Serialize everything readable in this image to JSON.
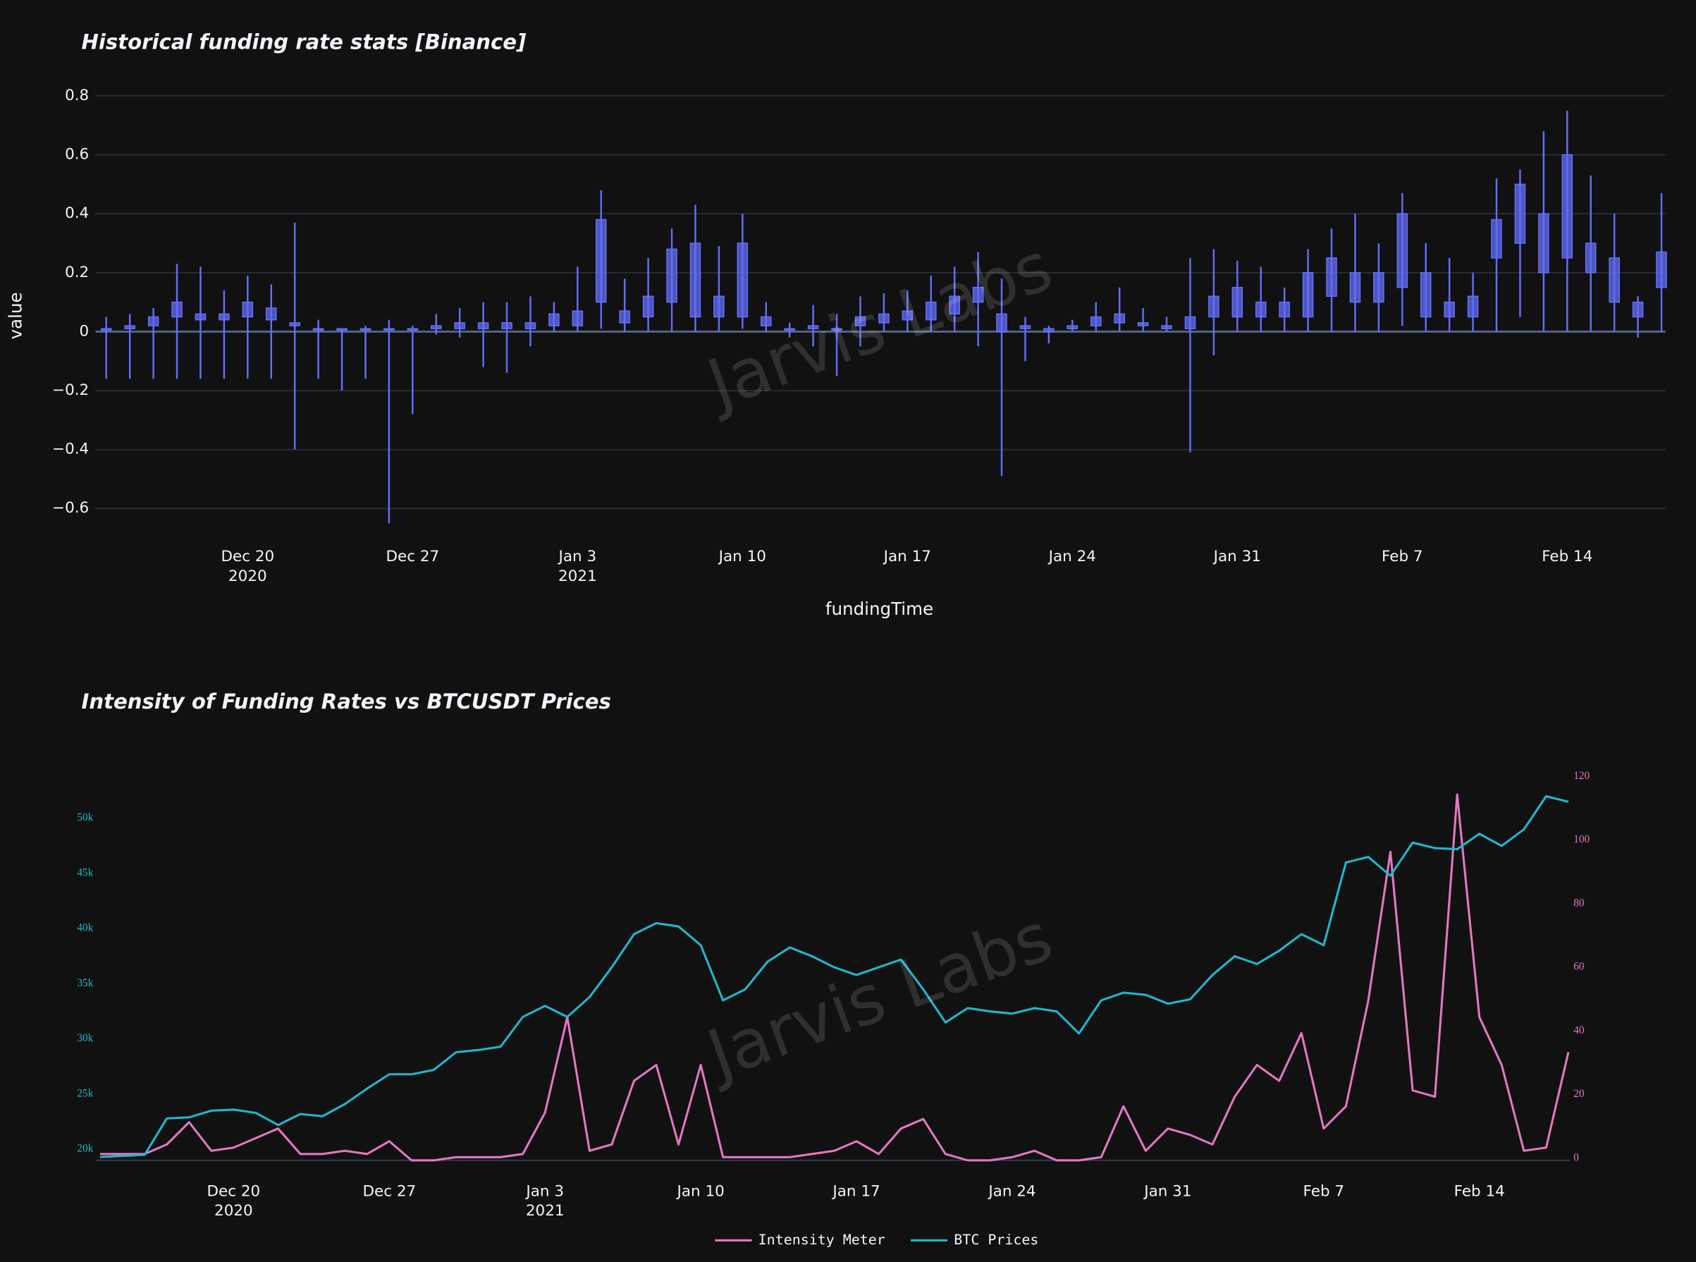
{
  "chart_data": [
    {
      "type": "candlestick",
      "title": "Historical funding rate stats [Binance]",
      "ylabel": "value",
      "xlabel": "fundingTime",
      "watermark": "Jarvis Labs",
      "color": "#636efa",
      "x": [
        "2020-12-14",
        "2020-12-15",
        "2020-12-16",
        "2020-12-17",
        "2020-12-18",
        "2020-12-19",
        "2020-12-20",
        "2020-12-21",
        "2020-12-22",
        "2020-12-23",
        "2020-12-24",
        "2020-12-25",
        "2020-12-26",
        "2020-12-27",
        "2020-12-28",
        "2020-12-29",
        "2020-12-30",
        "2020-12-31",
        "2021-01-01",
        "2021-01-02",
        "2021-01-03",
        "2021-01-04",
        "2021-01-05",
        "2021-01-06",
        "2021-01-07",
        "2021-01-08",
        "2021-01-09",
        "2021-01-10",
        "2021-01-11",
        "2021-01-12",
        "2021-01-13",
        "2021-01-14",
        "2021-01-15",
        "2021-01-16",
        "2021-01-17",
        "2021-01-18",
        "2021-01-19",
        "2021-01-20",
        "2021-01-21",
        "2021-01-22",
        "2021-01-23",
        "2021-01-24",
        "2021-01-25",
        "2021-01-26",
        "2021-01-27",
        "2021-01-28",
        "2021-01-29",
        "2021-01-30",
        "2021-01-31",
        "2021-02-01",
        "2021-02-02",
        "2021-02-03",
        "2021-02-04",
        "2021-02-05",
        "2021-02-06",
        "2021-02-07",
        "2021-02-08",
        "2021-02-09",
        "2021-02-10",
        "2021-02-11",
        "2021-02-12",
        "2021-02-13",
        "2021-02-14",
        "2021-02-15",
        "2021-02-16",
        "2021-02-17",
        "2021-02-18"
      ],
      "open": [
        0.01,
        0.01,
        0.02,
        0.05,
        0.06,
        0.04,
        0.05,
        0.08,
        0.03,
        0.01,
        0.01,
        0.01,
        0.01,
        0.01,
        0.01,
        0.01,
        0.03,
        0.01,
        0.01,
        0.02,
        0.02,
        0.1,
        0.07,
        0.05,
        0.1,
        0.05,
        0.05,
        0.05,
        0.05,
        0.01,
        0.01,
        0.01,
        0.02,
        0.03,
        0.04,
        0.04,
        0.06,
        0.1,
        0.06,
        0.01,
        0.0,
        0.01,
        0.02,
        0.03,
        0.02,
        0.02,
        0.01,
        0.05,
        0.05,
        0.05,
        0.05,
        0.05,
        0.12,
        0.1,
        0.1,
        0.15,
        0.05,
        0.05,
        0.05,
        0.25,
        0.3,
        0.2,
        0.25,
        0.2,
        0.1,
        0.05,
        0.15
      ],
      "high": [
        0.05,
        0.06,
        0.08,
        0.23,
        0.22,
        0.14,
        0.19,
        0.16,
        0.37,
        0.04,
        0.01,
        0.02,
        0.04,
        0.02,
        0.06,
        0.08,
        0.1,
        0.1,
        0.12,
        0.1,
        0.22,
        0.48,
        0.18,
        0.25,
        0.35,
        0.43,
        0.29,
        0.4,
        0.1,
        0.03,
        0.09,
        0.06,
        0.12,
        0.13,
        0.14,
        0.19,
        0.22,
        0.27,
        0.18,
        0.05,
        0.02,
        0.04,
        0.1,
        0.15,
        0.08,
        0.05,
        0.25,
        0.28,
        0.24,
        0.22,
        0.15,
        0.28,
        0.35,
        0.4,
        0.3,
        0.47,
        0.3,
        0.25,
        0.2,
        0.52,
        0.55,
        0.68,
        0.75,
        0.53,
        0.4,
        0.12,
        0.47
      ],
      "low": [
        -0.16,
        -0.16,
        -0.16,
        -0.16,
        -0.16,
        -0.16,
        -0.16,
        -0.16,
        -0.4,
        -0.16,
        -0.2,
        -0.16,
        -0.65,
        -0.28,
        -0.01,
        -0.02,
        -0.12,
        -0.14,
        -0.05,
        0.0,
        0.0,
        0.01,
        0.0,
        0.0,
        0.0,
        0.0,
        0.0,
        0.01,
        0.0,
        -0.02,
        -0.05,
        -0.15,
        -0.05,
        0.0,
        0.0,
        0.0,
        0.0,
        -0.05,
        -0.49,
        -0.1,
        -0.04,
        0.0,
        0.0,
        0.0,
        0.0,
        0.0,
        -0.41,
        -0.08,
        0.0,
        0.0,
        0.0,
        0.0,
        0.0,
        0.0,
        0.0,
        0.02,
        0.0,
        0.0,
        0.0,
        0.0,
        0.05,
        0.0,
        0.0,
        0.0,
        0.0,
        -0.02,
        0.0
      ],
      "close": [
        0.01,
        0.02,
        0.05,
        0.1,
        0.04,
        0.06,
        0.1,
        0.04,
        0.02,
        0.01,
        0.01,
        0.01,
        0.01,
        0.01,
        0.02,
        0.03,
        0.01,
        0.03,
        0.03,
        0.06,
        0.07,
        0.38,
        0.03,
        0.12,
        0.28,
        0.3,
        0.12,
        0.3,
        0.02,
        0.01,
        0.02,
        0.01,
        0.05,
        0.06,
        0.07,
        0.1,
        0.12,
        0.15,
        0.0,
        0.02,
        0.01,
        0.02,
        0.05,
        0.06,
        0.03,
        0.01,
        0.05,
        0.12,
        0.15,
        0.1,
        0.1,
        0.2,
        0.25,
        0.2,
        0.2,
        0.4,
        0.2,
        0.1,
        0.12,
        0.38,
        0.5,
        0.4,
        0.6,
        0.3,
        0.25,
        0.1,
        0.27
      ],
      "xlim": [
        "2020-12-13T13:00:00Z",
        "2021-02-18T04:00:00Z"
      ],
      "xticks": [
        {
          "value": "2020-12-20",
          "label": "Dec 20\n2020"
        },
        {
          "value": "2020-12-27",
          "label": "Dec 27"
        },
        {
          "value": "2021-01-03",
          "label": "Jan 3\n2021"
        },
        {
          "value": "2021-01-10",
          "label": "Jan 10"
        },
        {
          "value": "2021-01-17",
          "label": "Jan 17"
        },
        {
          "value": "2021-01-24",
          "label": "Jan 24"
        },
        {
          "value": "2021-01-31",
          "label": "Jan 31"
        },
        {
          "value": "2021-02-07",
          "label": "Feb 7"
        },
        {
          "value": "2021-02-14",
          "label": "Feb 14"
        }
      ],
      "ylim": [
        -0.68,
        0.85
      ],
      "yticks": [
        {
          "value": -0.6,
          "label": "−0.6"
        },
        {
          "value": -0.4,
          "label": "−0.4"
        },
        {
          "value": -0.2,
          "label": "−0.2"
        },
        0,
        0.2,
        0.4,
        0.6,
        0.8
      ],
      "grid": true
    },
    {
      "type": "line",
      "title": "Intensity of Funding Rates vs BTCUSDT Prices",
      "watermark": "Jarvis Labs",
      "legend": "bottom",
      "x": [
        "2020-12-14",
        "2020-12-15",
        "2020-12-16",
        "2020-12-17",
        "2020-12-18",
        "2020-12-19",
        "2020-12-20",
        "2020-12-21",
        "2020-12-22",
        "2020-12-23",
        "2020-12-24",
        "2020-12-25",
        "2020-12-26",
        "2020-12-27",
        "2020-12-28",
        "2020-12-29",
        "2020-12-30",
        "2020-12-31",
        "2021-01-01",
        "2021-01-02",
        "2021-01-03",
        "2021-01-04",
        "2021-01-05",
        "2021-01-06",
        "2021-01-07",
        "2021-01-08",
        "2021-01-09",
        "2021-01-10",
        "2021-01-11",
        "2021-01-12",
        "2021-01-13",
        "2021-01-14",
        "2021-01-15",
        "2021-01-16",
        "2021-01-17",
        "2021-01-18",
        "2021-01-19",
        "2021-01-20",
        "2021-01-21",
        "2021-01-22",
        "2021-01-23",
        "2021-01-24",
        "2021-01-25",
        "2021-01-26",
        "2021-01-27",
        "2021-01-28",
        "2021-01-29",
        "2021-01-30",
        "2021-01-31",
        "2021-02-01",
        "2021-02-02",
        "2021-02-03",
        "2021-02-04",
        "2021-02-05",
        "2021-02-06",
        "2021-02-07",
        "2021-02-08",
        "2021-02-09",
        "2021-02-10",
        "2021-02-11",
        "2021-02-12",
        "2021-02-13",
        "2021-02-14",
        "2021-02-15",
        "2021-02-16",
        "2021-02-17",
        "2021-02-18"
      ],
      "series": [
        {
          "name": "Intensity Meter",
          "color": "#e377c2",
          "axis": "y2",
          "values": [
            2,
            2,
            2,
            5,
            12,
            3,
            4,
            7,
            10,
            2,
            2,
            3,
            2,
            6,
            0,
            0,
            1,
            1,
            1,
            2,
            15,
            45,
            3,
            5,
            25,
            30,
            5,
            30,
            1,
            1,
            1,
            1,
            2,
            3,
            6,
            2,
            10,
            13,
            2,
            0,
            0,
            1,
            3,
            0,
            0,
            1,
            17,
            3,
            10,
            8,
            5,
            20,
            30,
            25,
            40,
            10,
            17,
            50,
            97,
            22,
            20,
            115,
            45,
            30,
            3,
            4,
            34
          ]
        },
        {
          "name": "BTC Prices",
          "color": "#1fb8cd",
          "values": [
            19300,
            19400,
            19500,
            22800,
            22900,
            23500,
            23600,
            23300,
            22200,
            23200,
            23000,
            24100,
            25500,
            26800,
            26800,
            27200,
            28800,
            29000,
            29300,
            32000,
            33000,
            32000,
            33800,
            36500,
            39500,
            40500,
            40200,
            38500,
            33500,
            34500,
            37000,
            38300,
            37500,
            36500,
            35800,
            36500,
            37200,
            34500,
            31500,
            32800,
            32500,
            32300,
            32800,
            32500,
            30500,
            33500,
            34200,
            34000,
            33200,
            33600,
            35800,
            37500,
            36800,
            38000,
            39500,
            38500,
            46000,
            46500,
            44800,
            47800,
            47300,
            47200,
            48600,
            47500,
            49000,
            52000,
            51500
          ]
        }
      ],
      "xlim": [
        "2020-12-13T19:00:00Z",
        "2021-02-18T02:00:00Z"
      ],
      "xticks": [
        {
          "value": "2020-12-20",
          "label": "Dec 20\n2020"
        },
        {
          "value": "2020-12-27",
          "label": "Dec 27"
        },
        {
          "value": "2021-01-03",
          "label": "Jan 3\n2021"
        },
        {
          "value": "2021-01-10",
          "label": "Jan 10"
        },
        {
          "value": "2021-01-17",
          "label": "Jan 17"
        },
        {
          "value": "2021-01-24",
          "label": "Jan 24"
        },
        {
          "value": "2021-01-31",
          "label": "Jan 31"
        },
        {
          "value": "2021-02-07",
          "label": "Feb 7"
        },
        {
          "value": "2021-02-14",
          "label": "Feb 14"
        }
      ],
      "ylim": [
        19000,
        53600
      ],
      "yticks": [
        {
          "value": 20000,
          "label": "20k"
        },
        {
          "value": 25000,
          "label": "25k"
        },
        {
          "value": 30000,
          "label": "30k"
        },
        {
          "value": 35000,
          "label": "35k"
        },
        {
          "value": 40000,
          "label": "40k"
        },
        {
          "value": 45000,
          "label": "45k"
        },
        {
          "value": 50000,
          "label": "50k"
        }
      ],
      "y2lim": [
        0,
        120
      ],
      "y2ticks": [
        0,
        20,
        40,
        60,
        80,
        100,
        120
      ],
      "grid": false
    }
  ]
}
